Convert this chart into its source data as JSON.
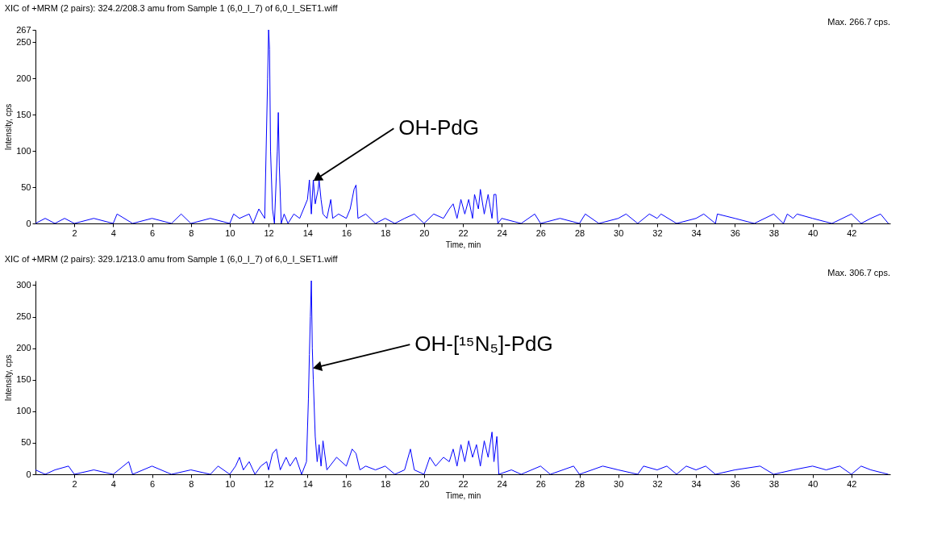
{
  "chart_data": [
    {
      "type": "line",
      "title": "XIC of +MRM (2 pairs): 324.2/208.3 amu from Sample 1 (6,0_I_7) of 6,0_I_SET1.wiff",
      "xlabel": "Time, min",
      "ylabel": "Intensity, cps",
      "annotations": [
        "Max. 266.7 cps.",
        {
          "text": "OH-PdG",
          "x": 14.5,
          "y": 62
        }
      ],
      "x": [
        0,
        0.5,
        1,
        1.5,
        2,
        3,
        4,
        4.2,
        5,
        6,
        7,
        7.5,
        8,
        9,
        10,
        10.2,
        10.5,
        11,
        11.2,
        11.5,
        11.8,
        11.95,
        12.0,
        12.05,
        12.1,
        12.2,
        12.3,
        12.45,
        12.5,
        12.55,
        12.65,
        12.8,
        13,
        13.3,
        13.6,
        13.8,
        14.0,
        14.1,
        14.2,
        14.3,
        14.4,
        14.55,
        14.6,
        14.7,
        14.8,
        15,
        15.2,
        15.3,
        15.6,
        16,
        16.2,
        16.4,
        16.5,
        16.6,
        17,
        17.5,
        18,
        18.5,
        19,
        19.5,
        20,
        20.5,
        21,
        21.3,
        21.5,
        21.7,
        21.9,
        22.1,
        22.3,
        22.5,
        22.6,
        22.8,
        22.9,
        23.1,
        23.3,
        23.5,
        23.6,
        23.7,
        23.8,
        24,
        25,
        25.7,
        26,
        27,
        28,
        28.3,
        29,
        30,
        30.4,
        31,
        31.6,
        32,
        32.2,
        33,
        34,
        34.4,
        35,
        35.1,
        36,
        37,
        38,
        38.5,
        38.7,
        39,
        39.2,
        40,
        41,
        42,
        42.5,
        43,
        43.5,
        43.9
      ],
      "series": [
        {
          "color": "#0000ff",
          "values": [
            0,
            7,
            0,
            7,
            0,
            7,
            0,
            13,
            0,
            7,
            0,
            13,
            0,
            7,
            0,
            13,
            7,
            13,
            0,
            20,
            7,
            200,
            267,
            240,
            100,
            20,
            0,
            100,
            153,
            80,
            0,
            13,
            0,
            13,
            7,
            20,
            33,
            60,
            13,
            60,
            27,
            47,
            60,
            33,
            13,
            7,
            33,
            7,
            13,
            7,
            20,
            47,
            53,
            7,
            13,
            0,
            7,
            0,
            7,
            13,
            0,
            13,
            7,
            20,
            27,
            7,
            33,
            13,
            33,
            7,
            40,
            20,
            47,
            13,
            40,
            7,
            40,
            40,
            0,
            7,
            0,
            13,
            0,
            7,
            0,
            13,
            0,
            7,
            13,
            0,
            13,
            7,
            13,
            0,
            7,
            13,
            0,
            13,
            7,
            0,
            13,
            0,
            13,
            7,
            13,
            7,
            0,
            13,
            0,
            7,
            13,
            0
          ]
        }
      ],
      "xlim": [
        0,
        44
      ],
      "xticks": [
        2,
        4,
        6,
        8,
        10,
        12,
        14,
        16,
        18,
        20,
        22,
        24,
        26,
        28,
        30,
        32,
        34,
        36,
        38,
        40,
        42
      ],
      "ylim": [
        0,
        267
      ],
      "yticks": [
        0,
        50,
        100,
        150,
        200,
        250,
        267
      ],
      "grid": false,
      "line_style": "solid"
    },
    {
      "type": "line",
      "title": "XIC of +MRM (2 pairs): 329.1/213.0 amu from Sample 1 (6,0_I_7) of 6,0_I_SET1.wiff",
      "xlabel": "Time, min",
      "ylabel": "Intensity, cps",
      "annotations": [
        "Max. 306.7 cps.",
        {
          "text": "OH-[¹⁵N₅]-PdG",
          "x": 14.5,
          "y": 170
        }
      ],
      "x": [
        0,
        0.5,
        1,
        1.7,
        2,
        3,
        4,
        4.8,
        5,
        6,
        7,
        8,
        9,
        9.4,
        10,
        10.3,
        10.5,
        10.7,
        11,
        11.3,
        11.6,
        11.9,
        12,
        12.2,
        12.4,
        12.6,
        12.9,
        13.1,
        13.4,
        13.7,
        13.95,
        14.05,
        14.1,
        14.15,
        14.2,
        14.25,
        14.3,
        14.4,
        14.5,
        14.6,
        14.7,
        14.8,
        15,
        15.5,
        16,
        16.3,
        16.5,
        16.7,
        17,
        17.5,
        18,
        18.5,
        19,
        19.3,
        19.5,
        20,
        20.3,
        20.6,
        21,
        21.3,
        21.5,
        21.7,
        21.9,
        22.1,
        22.3,
        22.5,
        22.7,
        22.9,
        23.1,
        23.3,
        23.5,
        23.6,
        23.75,
        23.85,
        24.5,
        25,
        26,
        26.5,
        27.7,
        28,
        29.2,
        30,
        31,
        31.3,
        32,
        32.5,
        33,
        33.5,
        34,
        34.5,
        35,
        36,
        37.3,
        38,
        39,
        40,
        40.7,
        41.4,
        42,
        42.5,
        43,
        43.9
      ],
      "series": [
        {
          "color": "#0000ff",
          "values": [
            7,
            0,
            7,
            13,
            0,
            7,
            0,
            20,
            0,
            13,
            0,
            7,
            0,
            13,
            0,
            13,
            27,
            7,
            20,
            0,
            13,
            20,
            7,
            33,
            40,
            7,
            27,
            13,
            27,
            0,
            20,
            120,
            190,
            250,
            307,
            200,
            150,
            60,
            20,
            47,
            13,
            53,
            7,
            27,
            13,
            40,
            33,
            7,
            13,
            7,
            13,
            0,
            7,
            40,
            7,
            0,
            27,
            13,
            27,
            20,
            40,
            13,
            47,
            20,
            53,
            27,
            47,
            13,
            53,
            27,
            67,
            20,
            60,
            0,
            7,
            0,
            13,
            0,
            13,
            0,
            13,
            7,
            0,
            13,
            7,
            13,
            0,
            13,
            7,
            13,
            0,
            7,
            13,
            0,
            7,
            13,
            7,
            13,
            0,
            13,
            7,
            0
          ]
        }
      ],
      "xlim": [
        0,
        44
      ],
      "xticks": [
        2,
        4,
        6,
        8,
        10,
        12,
        14,
        16,
        18,
        20,
        22,
        24,
        26,
        28,
        30,
        32,
        34,
        36,
        38,
        40,
        42
      ],
      "ylim": [
        0,
        307
      ],
      "yticks": [
        0,
        50,
        100,
        150,
        200,
        250,
        300
      ],
      "grid": false,
      "line_style": "solid"
    }
  ]
}
